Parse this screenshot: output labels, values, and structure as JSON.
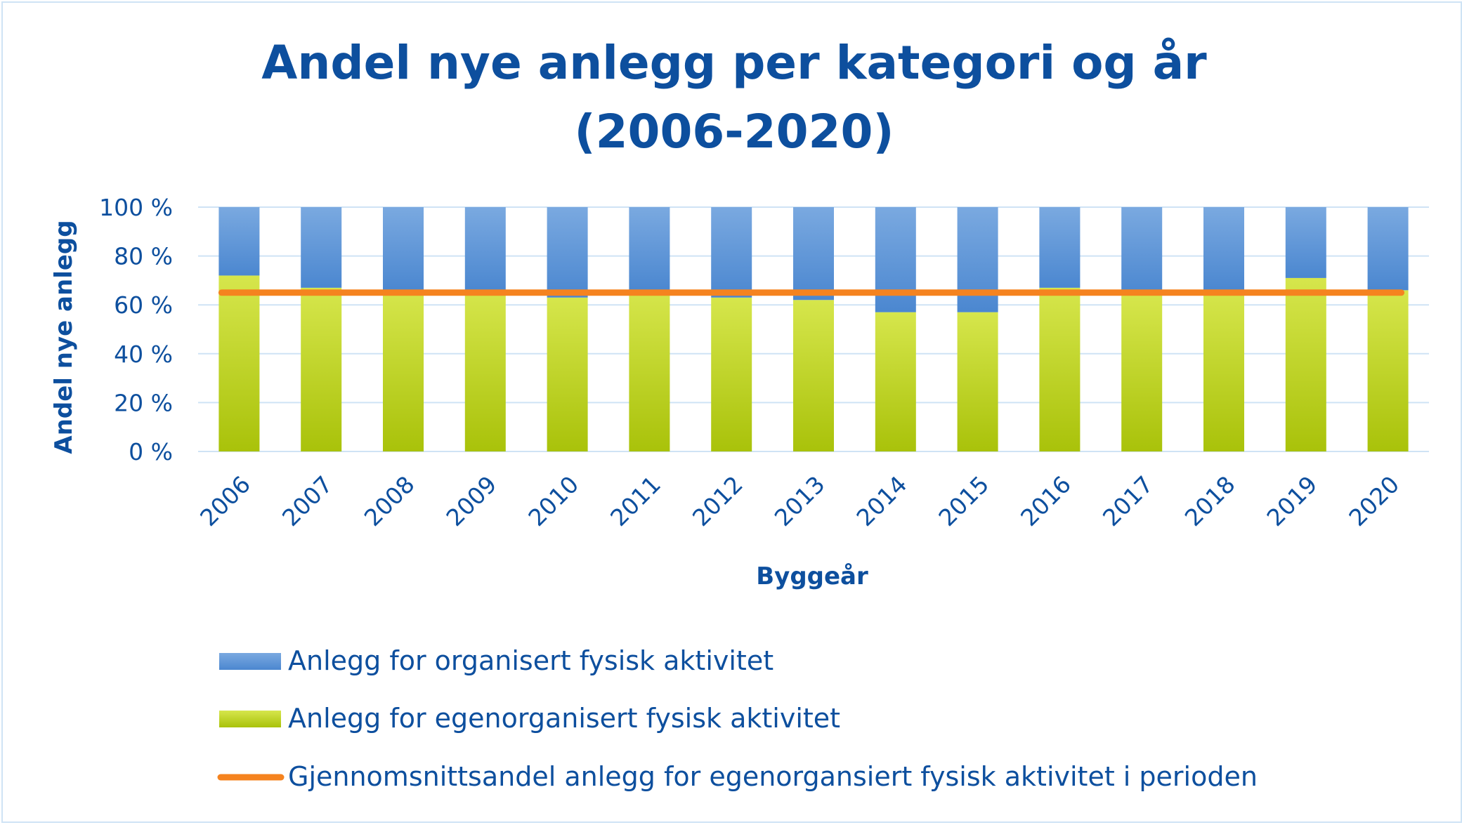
{
  "chart_data": {
    "type": "bar",
    "stacked": true,
    "percent_stacked": true,
    "title_lines": [
      "Andel nye anlegg per kategori og år",
      "(2006-2020)"
    ],
    "xlabel": "Byggeår",
    "ylabel": "Andel nye anlegg",
    "ylim": [
      0,
      100
    ],
    "y_ticks": [
      "0 %",
      "20 %",
      "40 %",
      "60 %",
      "80 %",
      "100 %"
    ],
    "categories": [
      "2006",
      "2007",
      "2008",
      "2009",
      "2010",
      "2011",
      "2012",
      "2013",
      "2014",
      "2015",
      "2016",
      "2017",
      "2018",
      "2019",
      "2020"
    ],
    "series": [
      {
        "name": "Anlegg for egenorganisert fysisk aktivitet",
        "color": "#b8d10f",
        "values": [
          72,
          67,
          66,
          66,
          63,
          66,
          63,
          62,
          57,
          57,
          67,
          64,
          66,
          71,
          66
        ]
      },
      {
        "name": "Anlegg for organisert fysisk aktivitet",
        "color": "#5b96d8",
        "values": [
          28,
          33,
          34,
          34,
          37,
          34,
          37,
          38,
          43,
          43,
          33,
          36,
          34,
          29,
          34
        ]
      }
    ],
    "average_line": {
      "name": "Gjennomsnittsandel anlegg for egenorgansiert fysisk aktivitet i perioden",
      "color": "#f5831f",
      "value": 65
    },
    "legend": {
      "placement": "bottom",
      "entries": [
        {
          "label": "Anlegg for organisert fysisk aktivitet",
          "kind": "bar",
          "color": "#5b96d8"
        },
        {
          "label": "Anlegg for egenorganisert fysisk aktivitet",
          "kind": "bar",
          "color": "#b8d10f"
        },
        {
          "label": "Gjennomsnittsandel anlegg for egenorgansiert fysisk aktivitet i perioden",
          "kind": "line",
          "color": "#f5831f"
        }
      ]
    },
    "grid": true
  }
}
